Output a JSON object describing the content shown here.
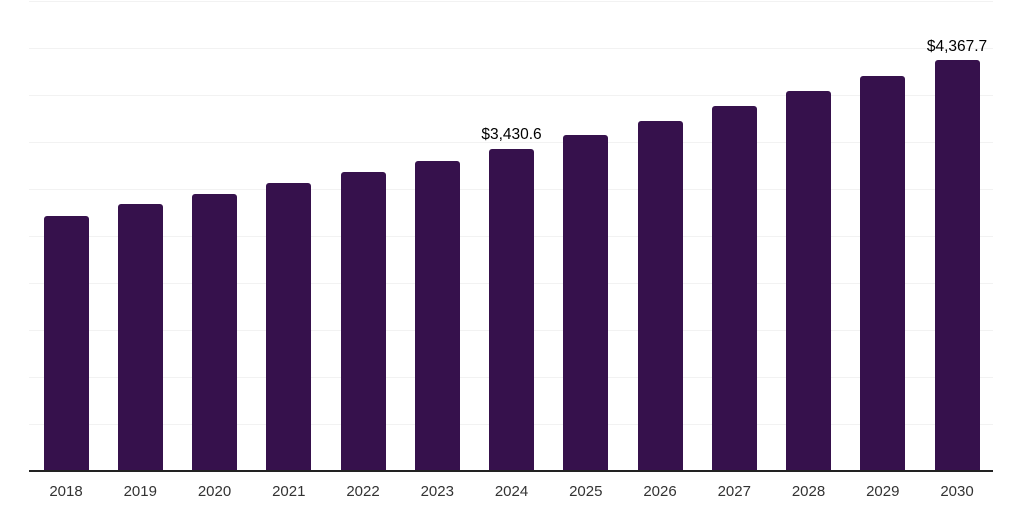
{
  "chart_data": {
    "type": "bar",
    "title": "",
    "xlabel": "",
    "ylabel": "",
    "categories": [
      "2018",
      "2019",
      "2020",
      "2021",
      "2022",
      "2023",
      "2024",
      "2025",
      "2026",
      "2027",
      "2028",
      "2029",
      "2030"
    ],
    "values": [
      2718,
      2838,
      2952,
      3064,
      3178,
      3303,
      3430.6,
      3578,
      3728,
      3886,
      4048,
      4198,
      4367.7
    ],
    "data_labels": [
      "",
      "",
      "",
      "",
      "",
      "",
      "$3,430.6",
      "",
      "",
      "",
      "",
      "",
      "$4,367.7"
    ],
    "ylim": [
      0,
      5000
    ],
    "gridline_step": 500,
    "grid": "horizontal",
    "legend_position": "none",
    "y_axis_tick_labels_visible": false,
    "colors": {
      "bar": "#36114C",
      "gridline": "#F2F2F2",
      "axis_line": "#222222",
      "tick_label": "#333333",
      "data_label": "#000000",
      "background": "#FFFFFF"
    }
  }
}
